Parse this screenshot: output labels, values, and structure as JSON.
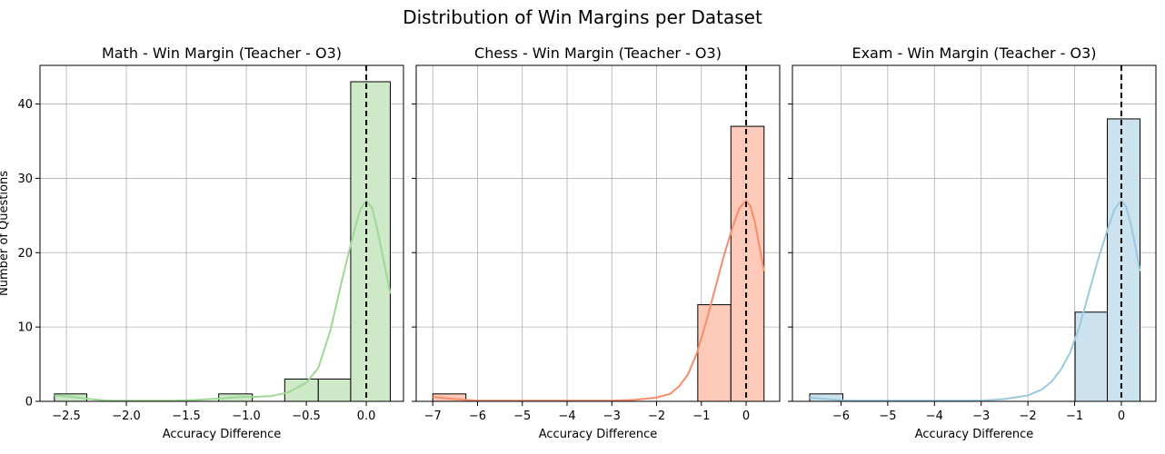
{
  "figure": {
    "title": "Distribution of Win Margins per Dataset",
    "shared_ylabel": "Number of Questions"
  },
  "chart_data": [
    {
      "type": "histogram",
      "title": "Math - Win Margin (Teacher - O3)",
      "xlabel": "Accuracy Difference",
      "ylabel": "Number of Questions",
      "xlim": [
        -2.72,
        0.31
      ],
      "ylim": [
        0,
        45.2
      ],
      "xticks": [
        -2.5,
        -2.0,
        -1.5,
        -1.0,
        -0.5,
        0.0
      ],
      "xtick_labels": [
        "−2.5",
        "−2.0",
        "−1.5",
        "−1.0",
        "−0.5",
        "0.0"
      ],
      "yticks": [
        0,
        10,
        20,
        30,
        40
      ],
      "ytick_labels": [
        "0",
        "10",
        "20",
        "30",
        "40"
      ],
      "bins": [
        {
          "start": -2.6,
          "end": -2.33,
          "count": 1
        },
        {
          "start": -2.33,
          "end": -2.05,
          "count": 0
        },
        {
          "start": -2.05,
          "end": -1.78,
          "count": 0
        },
        {
          "start": -1.78,
          "end": -1.5,
          "count": 0
        },
        {
          "start": -1.5,
          "end": -1.23,
          "count": 0
        },
        {
          "start": -1.23,
          "end": -0.95,
          "count": 1
        },
        {
          "start": -0.95,
          "end": -0.68,
          "count": 0
        },
        {
          "start": -0.68,
          "end": -0.4,
          "count": 3
        },
        {
          "start": -0.4,
          "end": -0.13,
          "count": 3
        },
        {
          "start": -0.13,
          "end": 0.2,
          "count": 43
        }
      ],
      "kde": {
        "x": [
          -2.6,
          -2.45,
          -2.3,
          -2.15,
          -2.0,
          -1.8,
          -1.6,
          -1.4,
          -1.2,
          -1.05,
          -0.95,
          -0.8,
          -0.65,
          -0.5,
          -0.4,
          -0.3,
          -0.2,
          -0.1,
          -0.05,
          0.0,
          0.05,
          0.1,
          0.15,
          0.2
        ],
        "y": [
          0.8,
          0.6,
          0.3,
          0.1,
          0.1,
          0.1,
          0.1,
          0.2,
          0.4,
          0.6,
          0.6,
          0.7,
          1.2,
          2.5,
          4.5,
          9.5,
          16.5,
          23.0,
          25.8,
          27.0,
          26.0,
          22.5,
          18.5,
          14.5
        ]
      },
      "vline_x": 0,
      "bar_color": "#cde9c8",
      "line_color": "#9fd896",
      "grid": true
    },
    {
      "type": "histogram",
      "title": "Chess - Win Margin (Teacher - O3)",
      "xlabel": "Accuracy Difference",
      "ylabel": "",
      "xlim": [
        -7.37,
        0.75
      ],
      "ylim": [
        0,
        45.2
      ],
      "xticks": [
        -7,
        -6,
        -5,
        -4,
        -3,
        -2,
        -1,
        0
      ],
      "xtick_labels": [
        "−7",
        "−6",
        "−5",
        "−4",
        "−3",
        "−2",
        "−1",
        "0"
      ],
      "yticks": [
        0,
        10,
        20,
        30,
        40
      ],
      "ytick_labels": [],
      "bins": [
        {
          "start": -7.0,
          "end": -6.26,
          "count": 1
        },
        {
          "start": -6.26,
          "end": -5.52,
          "count": 0
        },
        {
          "start": -5.52,
          "end": -4.78,
          "count": 0
        },
        {
          "start": -4.78,
          "end": -4.04,
          "count": 0
        },
        {
          "start": -4.04,
          "end": -3.3,
          "count": 0
        },
        {
          "start": -3.3,
          "end": -2.56,
          "count": 0
        },
        {
          "start": -2.56,
          "end": -1.82,
          "count": 0
        },
        {
          "start": -1.82,
          "end": -1.08,
          "count": 0
        },
        {
          "start": -1.08,
          "end": -0.34,
          "count": 13
        },
        {
          "start": -0.34,
          "end": 0.4,
          "count": 37
        }
      ],
      "kde": {
        "x": [
          -7.0,
          -6.5,
          -6.0,
          -5.0,
          -4.0,
          -3.0,
          -2.5,
          -2.0,
          -1.7,
          -1.5,
          -1.3,
          -1.1,
          -0.9,
          -0.7,
          -0.5,
          -0.3,
          -0.15,
          0.0,
          0.1,
          0.2,
          0.3,
          0.4
        ],
        "y": [
          0.6,
          0.3,
          0.1,
          0.1,
          0.1,
          0.1,
          0.2,
          0.5,
          1.0,
          2.0,
          3.6,
          6.5,
          10.5,
          15.0,
          19.5,
          23.5,
          26.0,
          27.0,
          26.2,
          24.0,
          20.8,
          17.5
        ]
      },
      "vline_x": 0,
      "bar_color": "#fdc9b8",
      "line_color": "#f88c6e",
      "grid": true
    },
    {
      "type": "histogram",
      "title": "Exam - Win Margin (Teacher - O3)",
      "xlabel": "Accuracy Difference",
      "ylabel": "",
      "xlim": [
        -7.04,
        0.74
      ],
      "ylim": [
        0,
        45.2
      ],
      "xticks": [
        -6,
        -5,
        -4,
        -3,
        -2,
        -1,
        0
      ],
      "xtick_labels": [
        "−6",
        "−5",
        "−4",
        "−3",
        "−2",
        "−1",
        "0"
      ],
      "yticks": [
        0,
        10,
        20,
        30,
        40
      ],
      "ytick_labels": [],
      "bins": [
        {
          "start": -6.67,
          "end": -5.96,
          "count": 1
        },
        {
          "start": -5.96,
          "end": -5.25,
          "count": 0
        },
        {
          "start": -5.25,
          "end": -4.54,
          "count": 0
        },
        {
          "start": -4.54,
          "end": -3.83,
          "count": 0
        },
        {
          "start": -3.83,
          "end": -3.12,
          "count": 0
        },
        {
          "start": -3.12,
          "end": -2.41,
          "count": 0
        },
        {
          "start": -2.41,
          "end": -1.7,
          "count": 0
        },
        {
          "start": -1.7,
          "end": -0.99,
          "count": 0
        },
        {
          "start": -0.99,
          "end": -0.3,
          "count": 12
        },
        {
          "start": -0.3,
          "end": 0.4,
          "count": 38
        }
      ],
      "kde": {
        "x": [
          -6.67,
          -6.3,
          -5.9,
          -5.0,
          -4.0,
          -3.0,
          -2.5,
          -2.0,
          -1.7,
          -1.5,
          -1.3,
          -1.1,
          -0.9,
          -0.7,
          -0.5,
          -0.3,
          -0.15,
          0.0,
          0.1,
          0.2,
          0.3,
          0.4
        ],
        "y": [
          0.5,
          0.3,
          0.1,
          0.1,
          0.1,
          0.1,
          0.3,
          0.8,
          1.6,
          2.6,
          4.2,
          6.5,
          10.0,
          14.5,
          19.0,
          23.0,
          25.8,
          27.0,
          26.2,
          24.0,
          20.8,
          17.5
        ]
      },
      "vline_x": 0,
      "bar_color": "#cce3ef",
      "line_color": "#9cc9de",
      "grid": true
    }
  ]
}
